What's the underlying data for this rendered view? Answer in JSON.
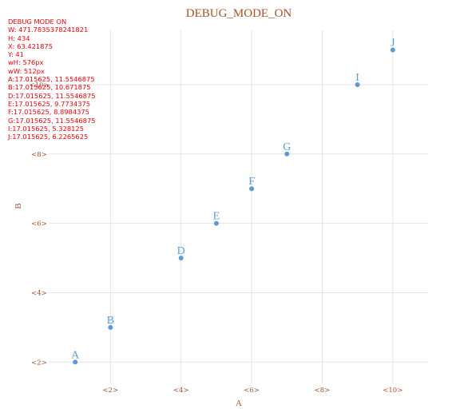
{
  "chart_data": {
    "type": "scatter",
    "title": "DEBUG_MODE_ON",
    "xlabel": "A",
    "ylabel": "B",
    "xlim": [
      0,
      11
    ],
    "ylim": [
      1.5,
      11.75
    ],
    "x_ticks": [
      2,
      4,
      6,
      8,
      10
    ],
    "x_tick_labels": [
      "<2>",
      "<4>",
      "<6>",
      "<8>",
      "<10>"
    ],
    "y_ticks": [
      2,
      4,
      6,
      8,
      10
    ],
    "y_tick_labels": [
      "<2>",
      "<4>",
      "<6>",
      "<8>",
      "<10>"
    ],
    "grid": true,
    "points": [
      {
        "label": "A",
        "x": 1,
        "y": 2
      },
      {
        "label": "B",
        "x": 2,
        "y": 3
      },
      {
        "label": "D",
        "x": 4,
        "y": 5
      },
      {
        "label": "E",
        "x": 5,
        "y": 6
      },
      {
        "label": "F",
        "x": 6,
        "y": 7
      },
      {
        "label": "G",
        "x": 7,
        "y": 8
      },
      {
        "label": "I",
        "x": 9,
        "y": 10
      },
      {
        "label": "J",
        "x": 10,
        "y": 11
      }
    ],
    "colors": {
      "title": "#a0522d",
      "points": "#5b9bd5",
      "debug": "#e8000b",
      "grid": "#e3e3e3"
    }
  },
  "debug_lines": [
    "DEBUG MODE ON",
    "W: 471.7835378241821",
    "H: 434",
    "X: 63.421875",
    "Y: 41",
    "wH: 576px",
    "wW: 512px",
    "A:17.015625, 11.5546875",
    "B:17.015625, 10.671875",
    "D:17.015625, 11.5546875",
    "E:17.015625, 9.7734375",
    "F:17.015625, 8.8984375",
    "G:17.015625, 11.5546875",
    "I:17.015625, 5.328125",
    "J:17.015625, 6.2265625"
  ]
}
